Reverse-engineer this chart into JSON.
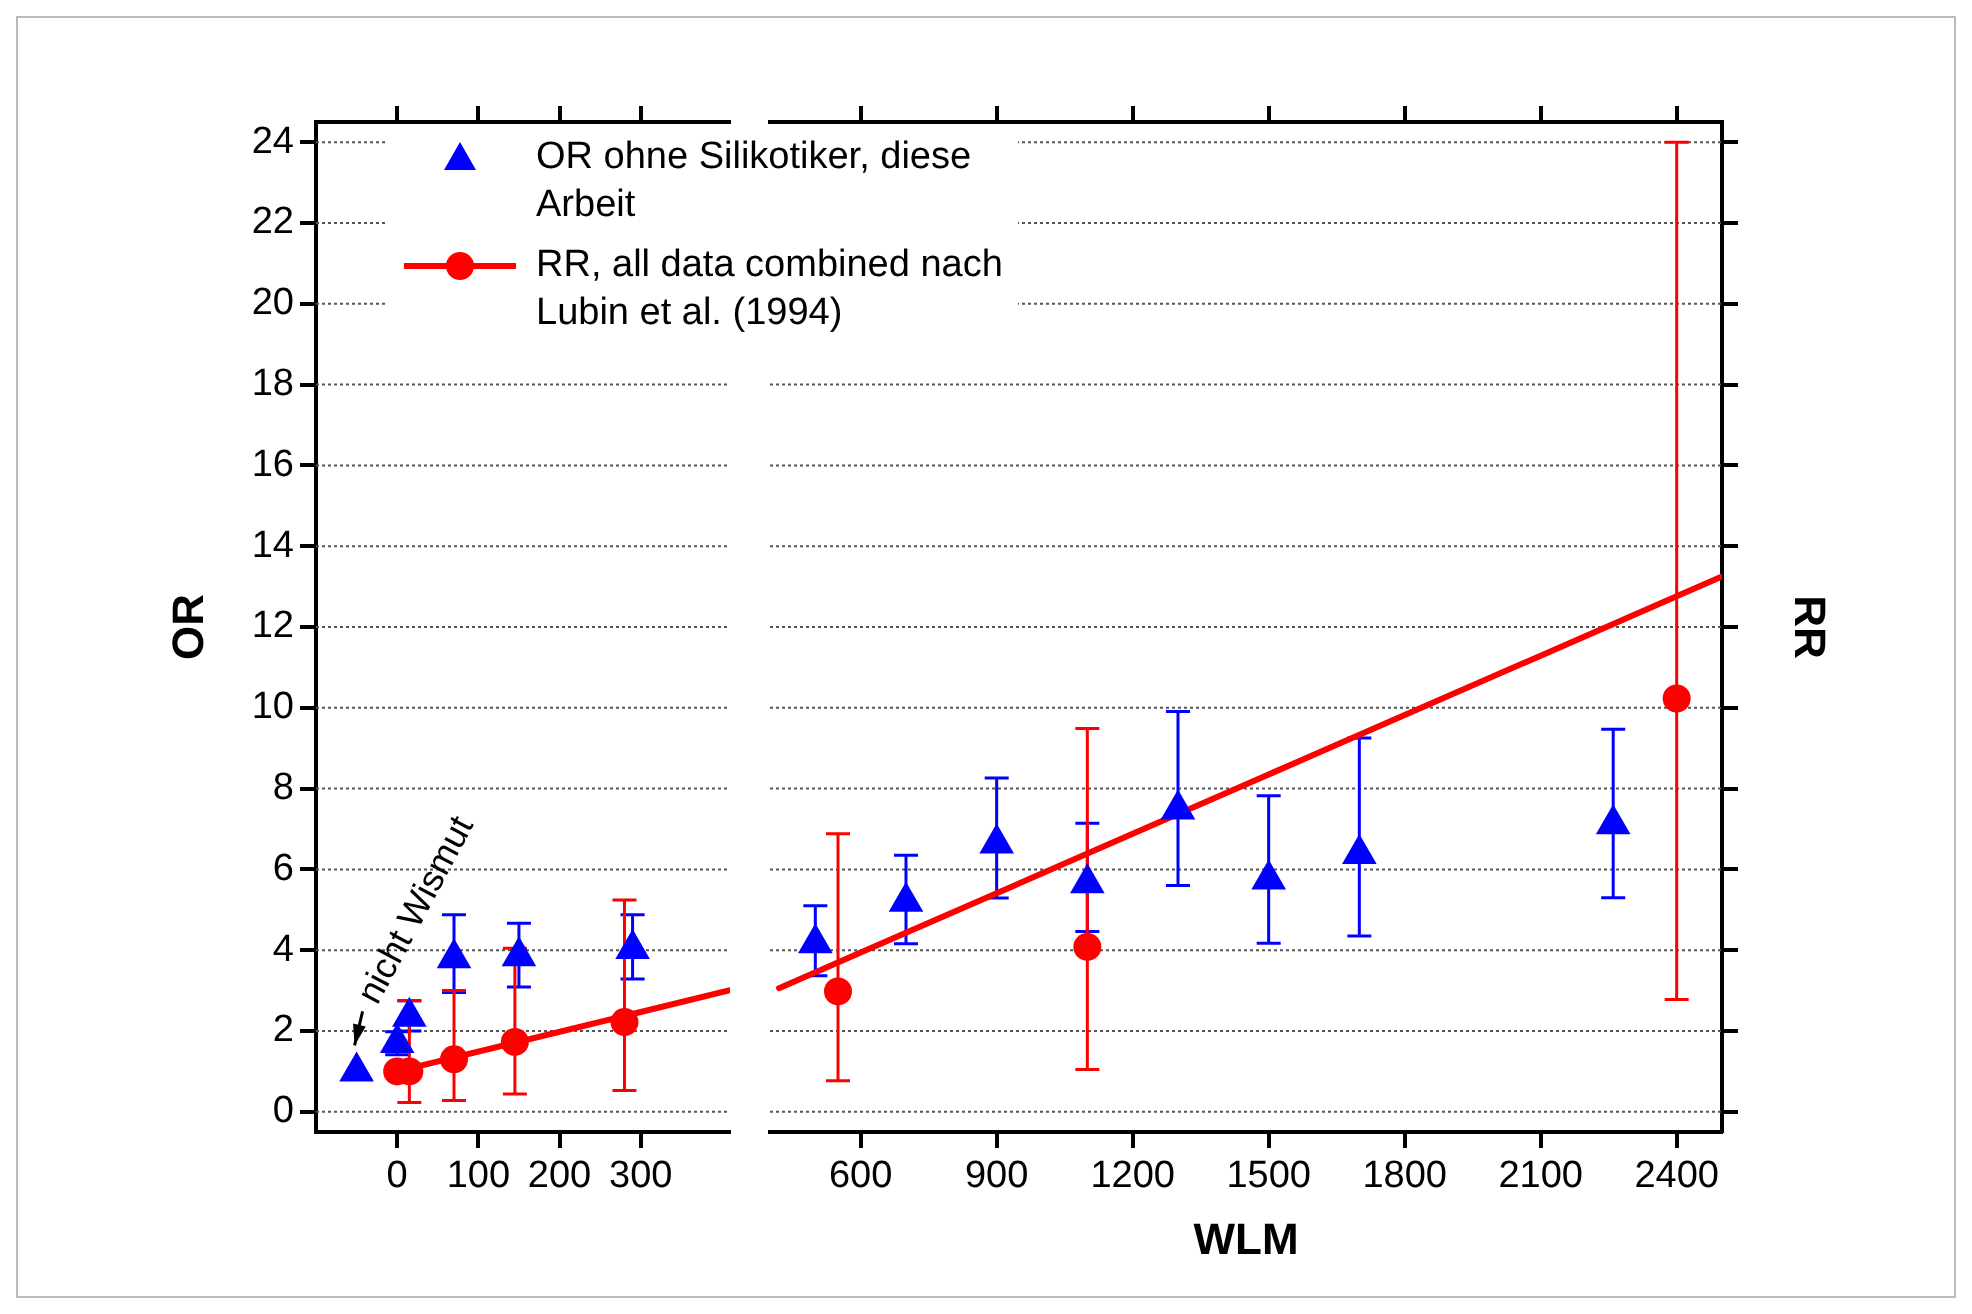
{
  "chart_data": [
    {
      "type": "scatter",
      "ylabel": "OR",
      "xlim": [
        -100,
        410
      ],
      "xticks": [
        0,
        100,
        200,
        300
      ],
      "ylim": [
        -0.5,
        24.5
      ],
      "yticks": [
        0,
        2,
        4,
        6,
        8,
        10,
        12,
        14,
        16,
        18,
        20,
        22,
        24
      ],
      "grid": "y",
      "legend": "top right",
      "annotations": [
        {
          "text": "nicht Wismut",
          "x": -50,
          "y": 1.0
        }
      ],
      "series": [
        {
          "name": "OR ohne Silikotiker, diese Arbeit",
          "type": "scatter",
          "marker": "triangle",
          "color": "#0000ff",
          "x": [
            -50,
            0,
            15,
            70,
            150,
            290
          ],
          "values": [
            1.0,
            1.7,
            2.35,
            3.8,
            3.85,
            4.03
          ],
          "errors": [
            null,
            [
              1.41,
              1.98
            ],
            [
              2.0,
              2.75
            ],
            [
              2.95,
              4.88
            ],
            [
              3.09,
              4.67
            ],
            [
              3.29,
              4.88
            ]
          ]
        },
        {
          "name": "RR, all data combined nach Lubin et al. (1994)",
          "type": "scatter",
          "marker": "circle",
          "color": "#ff0000",
          "x": [
            0,
            15,
            70,
            145,
            280
          ],
          "values": [
            1.0,
            1.0,
            1.3,
            1.73,
            2.22
          ],
          "errors": [
            null,
            [
              0.23,
              2.75
            ],
            [
              0.28,
              3.0
            ],
            [
              0.44,
              4.05
            ],
            [
              0.53,
              5.24
            ]
          ]
        },
        {
          "type": "line",
          "line_style": "solid",
          "marker": "none",
          "color": "#ff0000",
          "x": [
            0,
            300,
            410
          ],
          "values": [
            1.0,
            2.47,
            3.01
          ]
        }
      ]
    },
    {
      "type": "scatter",
      "xlabel": "WLM",
      "y2label": "RR",
      "xlim": [
        400,
        2500
      ],
      "xticks": [
        600,
        900,
        1200,
        1500,
        1800,
        2100,
        2400
      ],
      "ylim": [
        -0.5,
        24.5
      ],
      "yticks": [
        0,
        2,
        4,
        6,
        8,
        10,
        12,
        14,
        16,
        18,
        20,
        22,
        24
      ],
      "grid": "y",
      "tick_labels": "x",
      "series": [
        {
          "type": "scatter",
          "marker": "triangle",
          "color": "#0000ff",
          "x": [
            500,
            700,
            900,
            1100,
            1300,
            1500,
            1700,
            2260
          ],
          "values": [
            4.17,
            5.2,
            6.64,
            5.66,
            7.48,
            5.75,
            6.38,
            7.12
          ],
          "errors": [
            [
              3.37,
              5.1
            ],
            [
              4.16,
              6.35
            ],
            [
              5.29,
              8.26
            ],
            [
              4.46,
              7.14
            ],
            [
              5.6,
              9.91
            ],
            [
              4.17,
              7.82
            ],
            [
              4.35,
              9.25
            ],
            [
              5.3,
              9.47
            ]
          ]
        },
        {
          "type": "scatter",
          "marker": "circle",
          "color": "#ff0000",
          "x": [
            550,
            1100,
            2400
          ],
          "values": [
            2.98,
            4.08,
            10.23
          ],
          "errors": [
            [
              0.77,
              6.88
            ],
            [
              1.05,
              9.49
            ],
            [
              2.78,
              24
            ]
          ]
        },
        {
          "type": "line",
          "line_style": "solid",
          "marker": "none",
          "color": "#ff0000",
          "x": [
            420,
            600,
            900,
            1200,
            1500,
            1800,
            2100,
            2400,
            2500
          ],
          "values": [
            3.06,
            3.94,
            5.41,
            6.88,
            8.35,
            9.82,
            11.29,
            12.76,
            13.25
          ]
        }
      ]
    }
  ]
}
